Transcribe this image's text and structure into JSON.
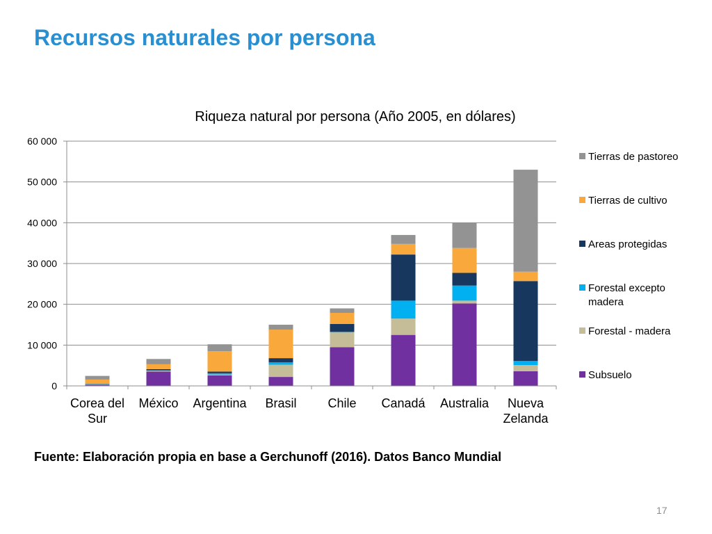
{
  "slide": {
    "title": "Recursos naturales por persona",
    "source": "Fuente: Elaboración propia en base a Gerchunoff (2016). Datos Banco Mundial",
    "page_number": "17",
    "title_color": "#2a8fd0"
  },
  "chart_data": {
    "type": "bar",
    "stacked": true,
    "title": "Riqueza natural por persona (Año 2005, en dólares)",
    "xlabel": "",
    "ylabel": "",
    "ylim": [
      0,
      60000
    ],
    "yticks": [
      0,
      10000,
      20000,
      30000,
      40000,
      50000,
      60000
    ],
    "ytick_labels": [
      "0",
      "10 000",
      "20 000",
      "30 000",
      "40 000",
      "50 000",
      "60 000"
    ],
    "grid": true,
    "legend_position": "right",
    "categories": [
      [
        "Corea del",
        "Sur"
      ],
      [
        "México"
      ],
      [
        "Argentina"
      ],
      [
        "Brasil"
      ],
      [
        "Chile"
      ],
      [
        "Canadá"
      ],
      [
        "Australia"
      ],
      [
        "Nueva",
        "Zelanda"
      ]
    ],
    "series": [
      {
        "name": "Subsuelo",
        "color": "#7030a0",
        "values": [
          300,
          3500,
          2600,
          2200,
          9500,
          12500,
          20200,
          3600
        ]
      },
      {
        "name": "Forestal - madera",
        "color": "#c4bd97",
        "values": [
          100,
          200,
          200,
          3000,
          3600,
          4000,
          700,
          1500
        ]
      },
      {
        "name": "Forestal excepto madera",
        "color": "#00b0f0",
        "values": [
          50,
          100,
          300,
          600,
          200,
          4400,
          3700,
          1000
        ]
      },
      {
        "name": "Areas protegidas",
        "color": "#17375e",
        "values": [
          100,
          300,
          400,
          1000,
          1900,
          11300,
          3100,
          19600
        ]
      },
      {
        "name": "Tierras de cultivo",
        "color": "#f9a93c",
        "values": [
          1000,
          1200,
          5000,
          7000,
          2700,
          2600,
          6100,
          2300
        ]
      },
      {
        "name": "Tierras de pastoreo",
        "color": "#939393",
        "values": [
          900,
          1300,
          1700,
          1200,
          1100,
          2200,
          6200,
          25000
        ]
      }
    ],
    "legend_order": [
      "Tierras de pastoreo",
      "Tierras de cultivo",
      "Areas protegidas",
      [
        "Forestal excepto",
        "madera"
      ],
      "Forestal - madera",
      "Subsuelo"
    ]
  }
}
